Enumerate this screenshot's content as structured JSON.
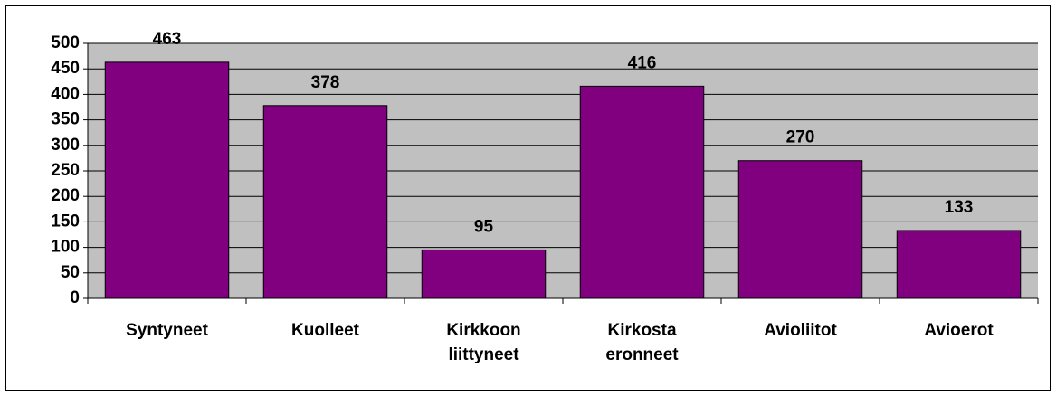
{
  "chart_data": {
    "type": "bar",
    "categories": [
      "Syntyneet",
      "Kuolleet",
      "Kirkkoon liittyneet",
      "Kirkosta eronneet",
      "Avioliitot",
      "Avioerot"
    ],
    "values": [
      463,
      378,
      95,
      416,
      270,
      133
    ],
    "color": "#800080",
    "plot_background": "#c0c0c0",
    "ylim": [
      0,
      500
    ],
    "yticks": [
      0,
      50,
      100,
      150,
      200,
      250,
      300,
      350,
      400,
      450,
      500
    ],
    "grid": true
  }
}
